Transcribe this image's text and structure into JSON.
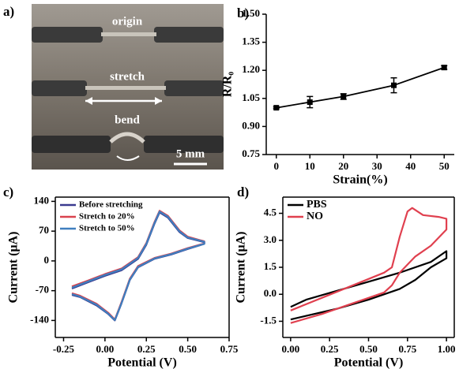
{
  "photo": {
    "label": "a)",
    "captions": [
      "origin",
      "stretch",
      "bend"
    ],
    "scale": "5 mm"
  },
  "chart_data": [
    {
      "type": "line",
      "label": "b)",
      "xlabel": "Strain(%)",
      "ylabel": "R/R₀",
      "x": [
        0,
        10,
        20,
        35,
        50
      ],
      "series": [
        {
          "color": "#000000",
          "values": [
            1.0,
            1.03,
            1.06,
            1.12,
            1.215
          ],
          "errors": [
            0.005,
            0.03,
            0.015,
            0.04,
            0.01
          ]
        }
      ],
      "xlim": [
        -3,
        53
      ],
      "xticks": [
        0,
        10,
        20,
        30,
        40,
        50
      ],
      "ylim": [
        0.75,
        1.5
      ],
      "yticks": [
        0.75,
        {
          "value": 0.9,
          "label": "0.90"
        },
        1.05,
        {
          "value": 1.2,
          "label": "1.20"
        },
        1.35,
        {
          "value": 1.5,
          "label": "1.50"
        }
      ],
      "frame": false
    },
    {
      "type": "line",
      "label": "c)",
      "xlabel": "Potential (V)",
      "ylabel": "Current (μA)",
      "legend": "upper left",
      "series": [
        {
          "name": "Before stretching",
          "color": "#3b3b8f",
          "x": [
            -0.2,
            -0.1,
            0,
            0.1,
            0.2,
            0.25,
            0.3,
            0.33,
            0.38,
            0.45,
            0.5,
            0.6,
            0.6,
            0.5,
            0.4,
            0.3,
            0.2,
            0.15,
            0.1,
            0.06,
            0.02,
            -0.05,
            -0.15,
            -0.2
          ],
          "values": [
            -65,
            -50,
            -35,
            -22,
            5,
            38,
            88,
            114,
            102,
            68,
            54,
            44,
            40,
            28,
            15,
            5,
            -15,
            -45,
            -100,
            -140,
            -125,
            -105,
            -85,
            -80
          ]
        },
        {
          "name": "Stretch to 20%",
          "color": "#d9434f",
          "x": [
            -0.2,
            -0.1,
            0,
            0.1,
            0.2,
            0.25,
            0.3,
            0.33,
            0.38,
            0.45,
            0.5,
            0.6,
            0.6,
            0.5,
            0.4,
            0.3,
            0.2,
            0.15,
            0.1,
            0.06,
            0.02,
            -0.05,
            -0.15,
            -0.2
          ],
          "values": [
            -60,
            -46,
            -31,
            -18,
            9,
            42,
            92,
            118,
            106,
            72,
            57,
            46,
            41,
            30,
            17,
            7,
            -12,
            -42,
            -97,
            -138,
            -122,
            -101,
            -82,
            -76
          ]
        },
        {
          "name": "Stretch to 50%",
          "color": "#3f7fbf",
          "x": [
            -0.2,
            -0.1,
            0,
            0.1,
            0.2,
            0.25,
            0.3,
            0.33,
            0.38,
            0.45,
            0.5,
            0.6,
            0.6,
            0.5,
            0.4,
            0.3,
            0.2,
            0.15,
            0.1,
            0.06,
            0.02,
            -0.05,
            -0.15,
            -0.2
          ],
          "values": [
            -63,
            -48,
            -33,
            -20,
            7,
            40,
            90,
            116,
            104,
            70,
            55,
            45,
            40,
            29,
            16,
            6,
            -14,
            -44,
            -99,
            -139,
            -124,
            -103,
            -84,
            -78
          ]
        }
      ],
      "xlim": [
        -0.3,
        0.75
      ],
      "xticks": [
        -0.25,
        {
          "value": 0,
          "label": "0.00"
        },
        0.25,
        {
          "value": 0.5,
          "label": "0.50"
        },
        0.75
      ],
      "ylim": [
        -180,
        150
      ],
      "yticks": [
        -140,
        -70,
        0,
        70,
        140
      ],
      "frame": true
    },
    {
      "type": "line",
      "label": "d)",
      "xlabel": "Potential (V)",
      "ylabel": "Current (μA)",
      "legend": "upper left",
      "series": [
        {
          "name": "PBS",
          "color": "#000000",
          "x": [
            0,
            0.1,
            0.3,
            0.5,
            0.7,
            0.9,
            1.0,
            1.0,
            0.9,
            0.8,
            0.7,
            0.5,
            0.3,
            0.1,
            0
          ],
          "values": [
            -0.7,
            -0.3,
            0.2,
            0.7,
            1.2,
            1.8,
            2.4,
            2.0,
            1.5,
            0.8,
            0.3,
            -0.3,
            -0.8,
            -1.2,
            -1.4
          ]
        },
        {
          "name": "NO",
          "color": "#e0404f",
          "x": [
            0,
            0.2,
            0.4,
            0.6,
            0.65,
            0.7,
            0.75,
            0.78,
            0.85,
            0.95,
            1.0,
            1.0,
            0.9,
            0.8,
            0.7,
            0.65,
            0.6,
            0.4,
            0.2,
            0
          ],
          "values": [
            -0.9,
            -0.2,
            0.5,
            1.2,
            1.5,
            3.2,
            4.6,
            4.8,
            4.4,
            4.3,
            4.2,
            3.6,
            2.7,
            2.1,
            1.2,
            0.5,
            0.1,
            -0.5,
            -1.1,
            -1.6
          ]
        }
      ],
      "xlim": [
        -0.05,
        1.05
      ],
      "xticks": [
        {
          "value": 0,
          "label": "0.00"
        },
        0.25,
        {
          "value": 0.5,
          "label": "0.50"
        },
        0.75,
        {
          "value": 1,
          "label": "1.00"
        }
      ],
      "ylim": [
        -2.4,
        5.4
      ],
      "yticks": [
        -1.5,
        {
          "value": 0,
          "label": "0.0"
        },
        1.5,
        {
          "value": 3,
          "label": "3.0"
        },
        4.5
      ],
      "frame": true
    }
  ]
}
